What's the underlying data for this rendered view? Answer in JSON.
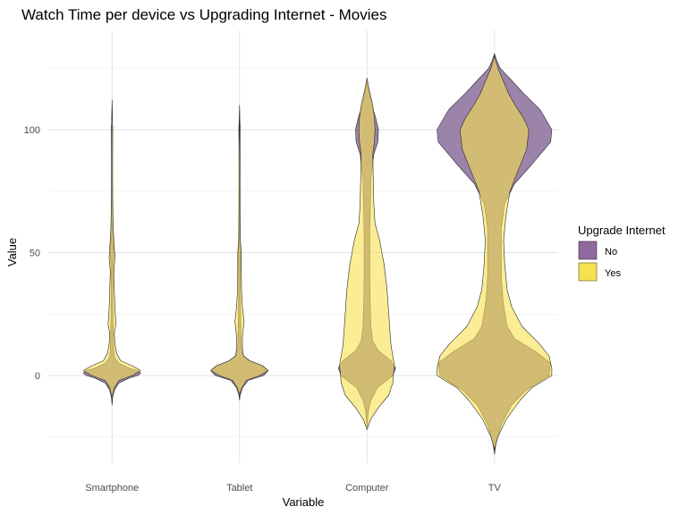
{
  "chart_data": {
    "type": "violin",
    "title": "Watch Time per device vs Upgrading Internet - Movies",
    "xlabel": "Variable",
    "ylabel": "Value",
    "categories": [
      "Smartphone",
      "Tablet",
      "Computer",
      "TV"
    ],
    "ylim": [
      -28,
      127
    ],
    "yticks": [
      0,
      50,
      100
    ],
    "grid": true,
    "legend": {
      "title": "Upgrade Internet",
      "position": "right",
      "entries": [
        {
          "label": "No",
          "color": "#8e6a9e"
        },
        {
          "label": "Yes",
          "color": "#f6e14e"
        }
      ]
    },
    "series": [
      {
        "name": "No",
        "color": "#7b5a8e",
        "violins": [
          {
            "category": "Smartphone",
            "profile": [
              [
                -12,
                0
              ],
              [
                -9,
                0.01
              ],
              [
                -6,
                0.04
              ],
              [
                -3,
                0.12
              ],
              [
                -1,
                0.3
              ],
              [
                0,
                0.45
              ],
              [
                1,
                0.5
              ],
              [
                2,
                0.45
              ],
              [
                3,
                0.3
              ],
              [
                5,
                0.12
              ],
              [
                7,
                0.05
              ],
              [
                10,
                0.03
              ],
              [
                15,
                0.025
              ],
              [
                20,
                0.02
              ],
              [
                30,
                0.015
              ],
              [
                45,
                0.02
              ],
              [
                50,
                0.035
              ],
              [
                55,
                0.02
              ],
              [
                65,
                0.015
              ],
              [
                70,
                0.008
              ],
              [
                80,
                0.005
              ],
              [
                99,
                0.01
              ],
              [
                101,
                0.012
              ],
              [
                103,
                0.005
              ],
              [
                112,
                0
              ]
            ]
          },
          {
            "category": "Tablet",
            "profile": [
              [
                -10,
                0
              ],
              [
                -8,
                0.01
              ],
              [
                -5,
                0.05
              ],
              [
                -2,
                0.15
              ],
              [
                0,
                0.42
              ],
              [
                2,
                0.5
              ],
              [
                4,
                0.4
              ],
              [
                6,
                0.18
              ],
              [
                8,
                0.07
              ],
              [
                11,
                0.035
              ],
              [
                16,
                0.025
              ],
              [
                25,
                0.02
              ],
              [
                35,
                0.015
              ],
              [
                44,
                0.02
              ],
              [
                50,
                0.025
              ],
              [
                55,
                0.01
              ],
              [
                70,
                0.006
              ],
              [
                96,
                0.01
              ],
              [
                101,
                0.012
              ],
              [
                104,
                0.005
              ],
              [
                110,
                0
              ]
            ]
          },
          {
            "category": "Computer",
            "profile": [
              [
                -21,
                0
              ],
              [
                -15,
                0.02
              ],
              [
                -10,
                0.07
              ],
              [
                -5,
                0.18
              ],
              [
                0,
                0.45
              ],
              [
                3,
                0.5
              ],
              [
                6,
                0.42
              ],
              [
                10,
                0.2
              ],
              [
                14,
                0.1
              ],
              [
                20,
                0.07
              ],
              [
                30,
                0.055
              ],
              [
                40,
                0.05
              ],
              [
                50,
                0.05
              ],
              [
                60,
                0.05
              ],
              [
                70,
                0.06
              ],
              [
                80,
                0.07
              ],
              [
                90,
                0.12
              ],
              [
                95,
                0.19
              ],
              [
                100,
                0.2
              ],
              [
                105,
                0.15
              ],
              [
                110,
                0.08
              ],
              [
                115,
                0.04
              ],
              [
                118,
                0.01
              ],
              [
                120,
                0
              ]
            ]
          },
          {
            "category": "TV",
            "profile": [
              [
                -32,
                0
              ],
              [
                -27,
                0.03
              ],
              [
                -20,
                0.12
              ],
              [
                -12,
                0.3
              ],
              [
                -6,
                0.55
              ],
              [
                0,
                0.95
              ],
              [
                5,
                0.98
              ],
              [
                10,
                0.7
              ],
              [
                15,
                0.35
              ],
              [
                20,
                0.22
              ],
              [
                30,
                0.15
              ],
              [
                40,
                0.12
              ],
              [
                50,
                0.12
              ],
              [
                60,
                0.12
              ],
              [
                70,
                0.18
              ],
              [
                78,
                0.35
              ],
              [
                85,
                0.62
              ],
              [
                95,
                0.98
              ],
              [
                100,
                1.0
              ],
              [
                108,
                0.8
              ],
              [
                115,
                0.5
              ],
              [
                120,
                0.3
              ],
              [
                125,
                0.1
              ],
              [
                128,
                0.04
              ],
              [
                131,
                0
              ]
            ]
          }
        ]
      },
      {
        "name": "Yes",
        "color": "#f6e14e",
        "violins": [
          {
            "category": "Smartphone",
            "profile": [
              [
                -11,
                0
              ],
              [
                -8,
                0.01
              ],
              [
                -5,
                0.04
              ],
              [
                -2,
                0.12
              ],
              [
                0,
                0.35
              ],
              [
                2,
                0.5
              ],
              [
                4,
                0.35
              ],
              [
                6,
                0.15
              ],
              [
                9,
                0.08
              ],
              [
                13,
                0.05
              ],
              [
                17,
                0.04
              ],
              [
                21,
                0.07
              ],
              [
                27,
                0.05
              ],
              [
                35,
                0.04
              ],
              [
                42,
                0.03
              ],
              [
                48,
                0.05
              ],
              [
                52,
                0.04
              ],
              [
                60,
                0.02
              ],
              [
                70,
                0.012
              ],
              [
                85,
                0.01
              ],
              [
                100,
                0.01
              ],
              [
                110,
                0
              ]
            ]
          },
          {
            "category": "Tablet",
            "profile": [
              [
                -9,
                0
              ],
              [
                -7,
                0.01
              ],
              [
                -5,
                0.04
              ],
              [
                -2,
                0.12
              ],
              [
                0,
                0.35
              ],
              [
                2,
                0.5
              ],
              [
                4,
                0.4
              ],
              [
                6,
                0.18
              ],
              [
                8,
                0.07
              ],
              [
                11,
                0.05
              ],
              [
                16,
                0.05
              ],
              [
                22,
                0.08
              ],
              [
                28,
                0.05
              ],
              [
                35,
                0.035
              ],
              [
                44,
                0.03
              ],
              [
                50,
                0.03
              ],
              [
                55,
                0.015
              ],
              [
                70,
                0.01
              ],
              [
                90,
                0.008
              ],
              [
                108,
                0
              ]
            ]
          },
          {
            "category": "Computer",
            "profile": [
              [
                -22,
                0
              ],
              [
                -18,
                0.06
              ],
              [
                -13,
                0.2
              ],
              [
                -8,
                0.38
              ],
              [
                -3,
                0.45
              ],
              [
                0,
                0.46
              ],
              [
                4,
                0.48
              ],
              [
                8,
                0.45
              ],
              [
                12,
                0.42
              ],
              [
                18,
                0.4
              ],
              [
                25,
                0.38
              ],
              [
                35,
                0.35
              ],
              [
                45,
                0.3
              ],
              [
                55,
                0.22
              ],
              [
                62,
                0.14
              ],
              [
                70,
                0.12
              ],
              [
                80,
                0.11
              ],
              [
                90,
                0.1
              ],
              [
                95,
                0.13
              ],
              [
                100,
                0.14
              ],
              [
                105,
                0.13
              ],
              [
                110,
                0.1
              ],
              [
                116,
                0.04
              ],
              [
                121,
                0
              ]
            ]
          },
          {
            "category": "TV",
            "profile": [
              [
                -30,
                0
              ],
              [
                -25,
                0.06
              ],
              [
                -18,
                0.2
              ],
              [
                -10,
                0.45
              ],
              [
                -5,
                0.65
              ],
              [
                0,
                1.0
              ],
              [
                3,
                1.0
              ],
              [
                8,
                0.95
              ],
              [
                13,
                0.78
              ],
              [
                20,
                0.48
              ],
              [
                28,
                0.3
              ],
              [
                35,
                0.22
              ],
              [
                45,
                0.18
              ],
              [
                55,
                0.16
              ],
              [
                65,
                0.2
              ],
              [
                75,
                0.27
              ],
              [
                85,
                0.44
              ],
              [
                92,
                0.56
              ],
              [
                100,
                0.6
              ],
              [
                105,
                0.5
              ],
              [
                110,
                0.36
              ],
              [
                115,
                0.24
              ],
              [
                120,
                0.15
              ],
              [
                125,
                0.06
              ],
              [
                130,
                0
              ]
            ]
          }
        ]
      }
    ]
  }
}
